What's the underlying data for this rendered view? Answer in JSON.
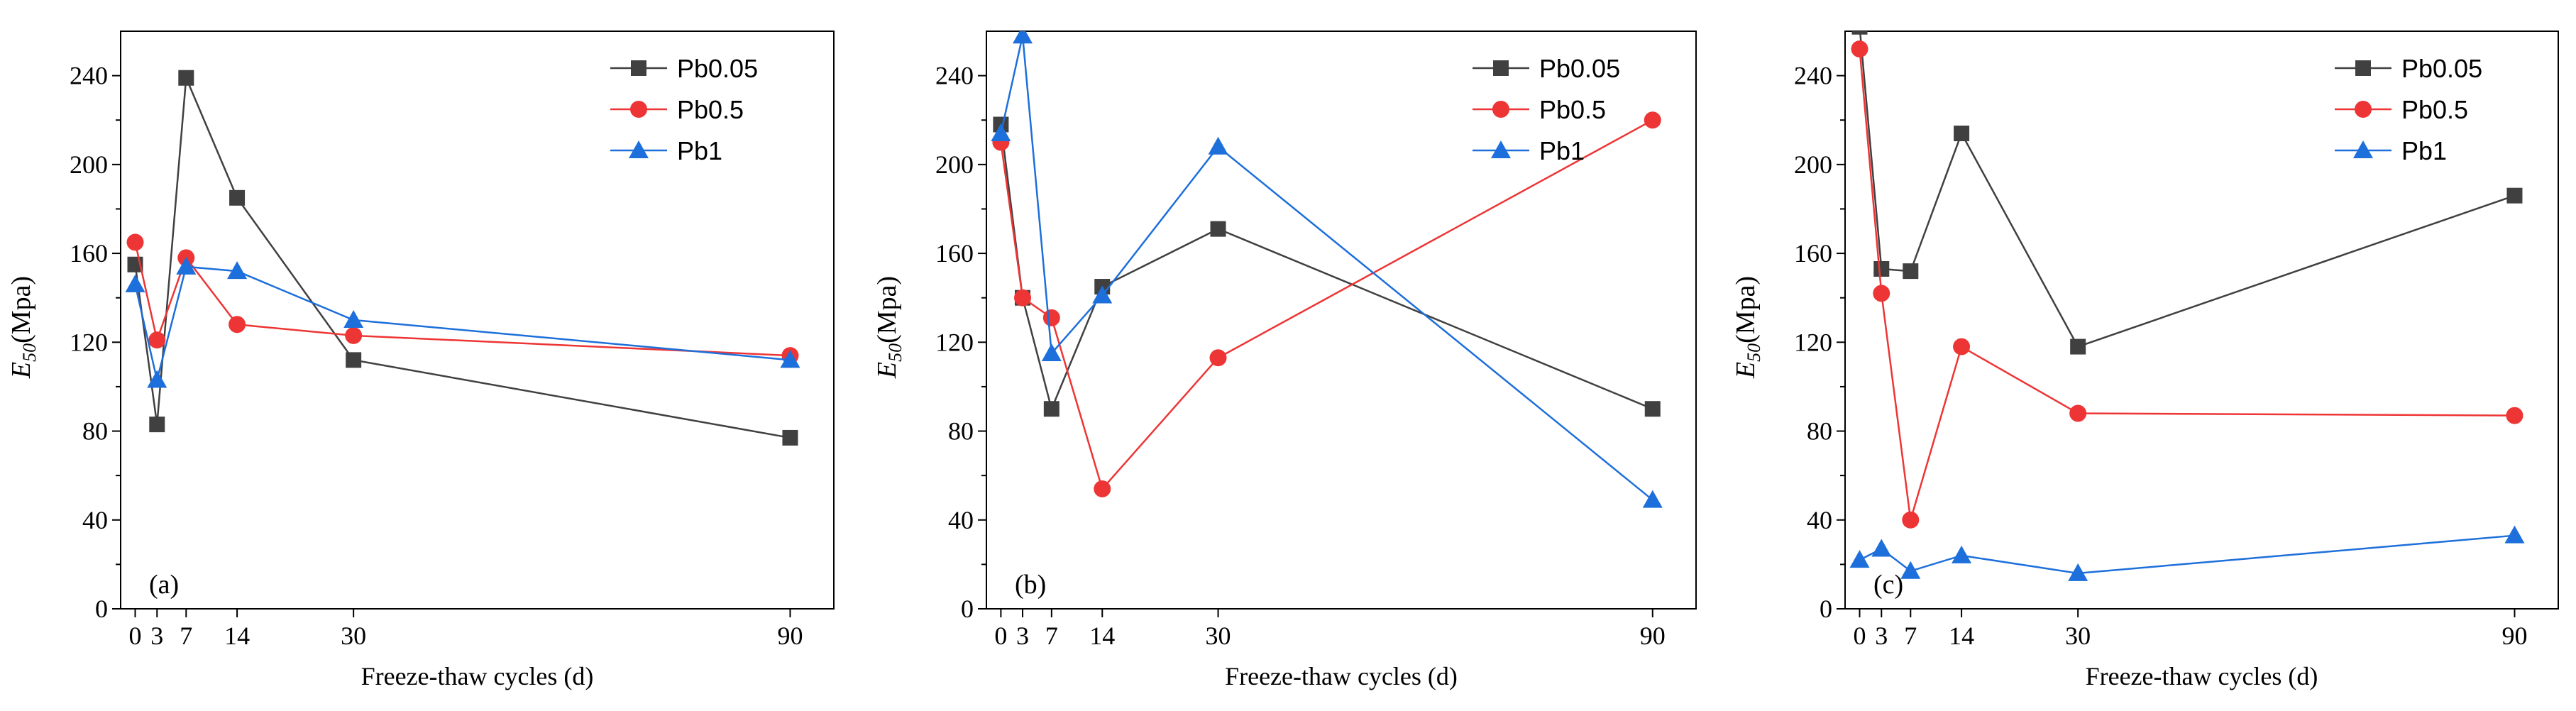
{
  "chart_data": [
    {
      "type": "line",
      "panel_label": "(a)",
      "xlabel": "Freeze-thaw cycles (d)",
      "ylabel_main": "E",
      "ylabel_sub": "50",
      "ylabel_rest": "(Mpa)",
      "x": [
        0,
        3,
        7,
        14,
        30,
        90
      ],
      "xticks": [
        0,
        3,
        7,
        14,
        30,
        90
      ],
      "xlim": [
        -2,
        96
      ],
      "ylim": [
        0,
        260
      ],
      "yticks": [
        0,
        40,
        80,
        120,
        160,
        200,
        240
      ],
      "legend_position": "top-right",
      "series": [
        {
          "name": "Pb0.05",
          "values": [
            155,
            83,
            239,
            185,
            112,
            77
          ],
          "color": "#404040",
          "marker": "square"
        },
        {
          "name": "Pb0.5",
          "values": [
            165,
            121,
            158,
            128,
            123,
            114
          ],
          "color": "#ee3535",
          "marker": "circle"
        },
        {
          "name": "Pb1",
          "values": [
            146,
            103,
            154,
            152,
            130,
            112
          ],
          "color": "#1d6fdb",
          "marker": "triangle"
        }
      ]
    },
    {
      "type": "line",
      "panel_label": "(b)",
      "xlabel": "Freeze-thaw cycles (d)",
      "ylabel_main": "E",
      "ylabel_sub": "50",
      "ylabel_rest": "(Mpa)",
      "x": [
        0,
        3,
        7,
        14,
        30,
        90
      ],
      "xticks": [
        0,
        3,
        7,
        14,
        30,
        90
      ],
      "xlim": [
        -2,
        96
      ],
      "ylim": [
        0,
        260
      ],
      "yticks": [
        0,
        40,
        80,
        120,
        160,
        200,
        240
      ],
      "legend_position": "top-right",
      "series": [
        {
          "name": "Pb0.05",
          "values": [
            218,
            140,
            90,
            145,
            171,
            90
          ],
          "color": "#404040",
          "marker": "square"
        },
        {
          "name": "Pb0.5",
          "values": [
            210,
            140,
            131,
            54,
            113,
            220
          ],
          "color": "#ee3535",
          "marker": "circle"
        },
        {
          "name": "Pb1",
          "values": [
            214,
            258,
            115,
            141,
            208,
            49
          ],
          "color": "#1d6fdb",
          "marker": "triangle"
        }
      ]
    },
    {
      "type": "line",
      "panel_label": "(c)",
      "xlabel": "Freeze-thaw cycles (d)",
      "ylabel_main": "E",
      "ylabel_sub": "50",
      "ylabel_rest": "(Mpa)",
      "x": [
        0,
        3,
        7,
        14,
        30,
        90
      ],
      "xticks": [
        0,
        3,
        7,
        14,
        30,
        90
      ],
      "xlim": [
        -2,
        96
      ],
      "ylim": [
        0,
        260
      ],
      "yticks": [
        0,
        40,
        80,
        120,
        160,
        200,
        240
      ],
      "legend_position": "top-right",
      "series": [
        {
          "name": "Pb0.05",
          "values": [
            262,
            153,
            152,
            214,
            118,
            186
          ],
          "color": "#404040",
          "marker": "square"
        },
        {
          "name": "Pb0.5",
          "values": [
            252,
            142,
            40,
            118,
            88,
            87
          ],
          "color": "#ee3535",
          "marker": "circle"
        },
        {
          "name": "Pb1",
          "values": [
            22,
            27,
            17,
            24,
            16,
            33
          ],
          "color": "#1d6fdb",
          "marker": "triangle"
        }
      ]
    }
  ]
}
